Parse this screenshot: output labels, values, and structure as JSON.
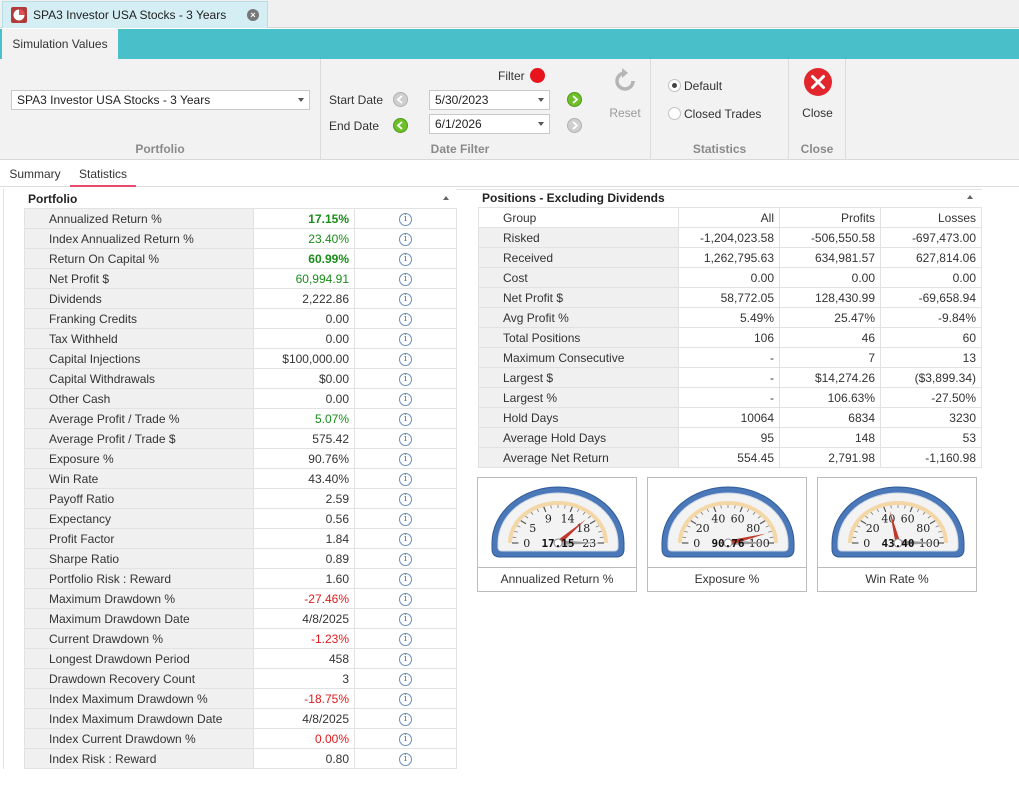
{
  "document_tab": {
    "title": "SPA3 Investor USA Stocks - 3 Years"
  },
  "ribbon": {
    "tab": "Simulation Values",
    "portfolio": {
      "selected": "SPA3 Investor USA Stocks - 3 Years",
      "group_label": "Portfolio"
    },
    "date_filter": {
      "filter_label": "Filter",
      "start_label": "Start Date",
      "start_value": "5/30/2023",
      "end_label": "End Date",
      "end_value": "6/1/2026",
      "reset_label": "Reset",
      "group_label": "Date Filter"
    },
    "statistics": {
      "default_label": "Default",
      "closed_label": "Closed Trades",
      "group_label": "Statistics"
    },
    "close": {
      "label": "Close",
      "group_label": "Close"
    }
  },
  "inner_tabs": [
    "Summary",
    "Statistics"
  ],
  "portfolio": {
    "title": "Portfolio",
    "rows": [
      {
        "name": "Annualized Return %",
        "value": "17.15%",
        "style": "green-b"
      },
      {
        "name": "Index Annualized Return %",
        "value": "23.40%",
        "style": "green"
      },
      {
        "name": "Return On Capital %",
        "value": "60.99%",
        "style": "green-b"
      },
      {
        "name": "Net Profit $",
        "value": "60,994.91",
        "style": "green"
      },
      {
        "name": "Dividends",
        "value": "2,222.86",
        "style": ""
      },
      {
        "name": "Franking Credits",
        "value": "0.00",
        "style": ""
      },
      {
        "name": "Tax Withheld",
        "value": "0.00",
        "style": ""
      },
      {
        "name": "Capital Injections",
        "value": "$100,000.00",
        "style": ""
      },
      {
        "name": "Capital Withdrawals",
        "value": "$0.00",
        "style": ""
      },
      {
        "name": "Other Cash",
        "value": "0.00",
        "style": ""
      },
      {
        "name": "Average Profit / Trade %",
        "value": "5.07%",
        "style": "green"
      },
      {
        "name": "Average Profit / Trade $",
        "value": "575.42",
        "style": ""
      },
      {
        "name": "Exposure %",
        "value": "90.76%",
        "style": ""
      },
      {
        "name": "Win Rate",
        "value": "43.40%",
        "style": ""
      },
      {
        "name": "Payoff Ratio",
        "value": "2.59",
        "style": ""
      },
      {
        "name": "Expectancy",
        "value": "0.56",
        "style": ""
      },
      {
        "name": "Profit Factor",
        "value": "1.84",
        "style": ""
      },
      {
        "name": "Sharpe Ratio",
        "value": "0.89",
        "style": ""
      },
      {
        "name": "Portfolio Risk : Reward",
        "value": "1.60",
        "style": ""
      },
      {
        "name": "Maximum Drawdown %",
        "value": "-27.46%",
        "style": "red"
      },
      {
        "name": "Maximum Drawdown Date",
        "value": "4/8/2025",
        "style": ""
      },
      {
        "name": "Current Drawdown %",
        "value": "-1.23%",
        "style": "red"
      },
      {
        "name": "Longest Drawdown Period",
        "value": "458",
        "style": ""
      },
      {
        "name": "Drawdown Recovery Count",
        "value": "3",
        "style": ""
      },
      {
        "name": "Index Maximum Drawdown %",
        "value": "-18.75%",
        "style": "red"
      },
      {
        "name": "Index Maximum Drawdown Date",
        "value": "4/8/2025",
        "style": ""
      },
      {
        "name": "Index Current Drawdown %",
        "value": "0.00%",
        "style": "red"
      },
      {
        "name": "Index Risk : Reward",
        "value": "0.80",
        "style": ""
      }
    ]
  },
  "positions": {
    "title": "Positions - Excluding Dividends",
    "headers": [
      "Group",
      "All",
      "Profits",
      "Losses"
    ],
    "rows": [
      [
        "Risked",
        "-1,204,023.58",
        "-506,550.58",
        "-697,473.00"
      ],
      [
        "Received",
        "1,262,795.63",
        "634,981.57",
        "627,814.06"
      ],
      [
        "Cost",
        "0.00",
        "0.00",
        "0.00"
      ],
      [
        "Net Profit $",
        "58,772.05",
        "128,430.99",
        "-69,658.94"
      ],
      [
        "Avg Profit %",
        "5.49%",
        "25.47%",
        "-9.84%"
      ],
      [
        "Total Positions",
        "106",
        "46",
        "60"
      ],
      [
        "Maximum Consecutive",
        "-",
        "7",
        "13"
      ],
      [
        "Largest $",
        "-",
        "$14,274.26",
        "($3,899.34)"
      ],
      [
        "Largest %",
        "-",
        "106.63%",
        "-27.50%"
      ],
      [
        "Hold Days",
        "10064",
        "6834",
        "3230"
      ],
      [
        "Average Hold Days",
        "95",
        "148",
        "53"
      ],
      [
        "Average Net Return",
        "554.45",
        "2,791.98",
        "-1,160.98"
      ]
    ]
  },
  "gauges": [
    {
      "caption": "Annualized Return %",
      "value": 17.15,
      "value_text": "17.15",
      "min": 0,
      "max": 23,
      "ticks": [
        "0",
        "5",
        "9",
        "14",
        "18",
        "23"
      ],
      "accent": "#c0392b",
      "limit": 23
    },
    {
      "caption": "Exposure %",
      "value": 90.76,
      "value_text": "90.76",
      "min": 0,
      "max": 100,
      "ticks": [
        "0",
        "20",
        "40",
        "60",
        "80",
        "100"
      ],
      "accent": "#c0392b",
      "limit": 100
    },
    {
      "caption": "Win Rate %",
      "value": 43.4,
      "value_text": "43.40",
      "min": 0,
      "max": 100,
      "ticks": [
        "0",
        "20",
        "40",
        "60",
        "80",
        "100"
      ],
      "accent": "#c0392b",
      "limit": 100
    }
  ]
}
